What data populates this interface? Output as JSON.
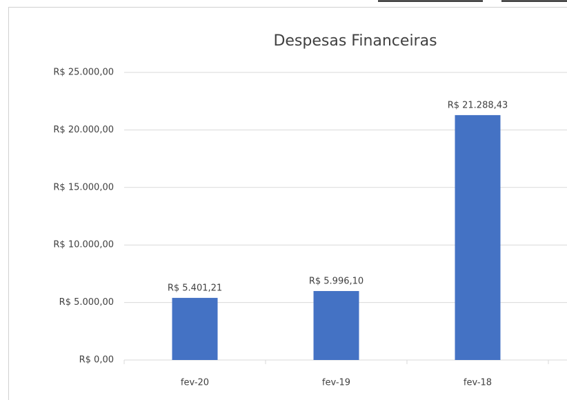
{
  "chart_data": {
    "type": "bar",
    "title": "Despesas Financeiras",
    "categories": [
      "fev-20",
      "fev-19",
      "fev-18"
    ],
    "values": [
      5401.21,
      5996.1,
      21288.43
    ],
    "value_labels": [
      "R$ 5.401,21",
      "R$ 5.996,10",
      "R$ 21.288,43"
    ],
    "color": "#4472c4",
    "ylim": [
      0,
      25000
    ],
    "yticks": [
      {
        "value": 0,
        "label": "R$ 0,00"
      },
      {
        "value": 5000,
        "label": "R$ 5.000,00"
      },
      {
        "value": 10000,
        "label": "R$ 10.000,00"
      },
      {
        "value": 15000,
        "label": "R$ 15.000,00"
      },
      {
        "value": 20000,
        "label": "R$ 20.000,00"
      },
      {
        "value": 25000,
        "label": "R$ 25.000,00"
      }
    ],
    "grid": true
  }
}
